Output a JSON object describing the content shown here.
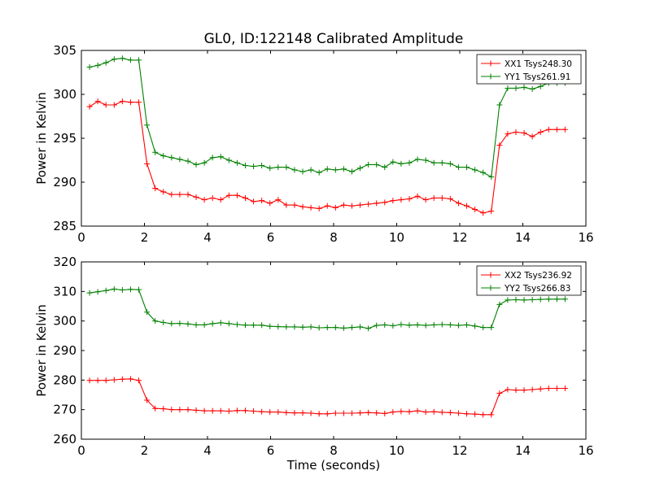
{
  "title": "GL0, ID:122148 Calibrated Amplitude",
  "chart_data": [
    {
      "type": "line",
      "xlim": [
        0,
        16
      ],
      "ylim": [
        285,
        305
      ],
      "xticks": [
        0,
        2,
        4,
        6,
        8,
        10,
        12,
        14,
        16
      ],
      "yticks": [
        285,
        290,
        295,
        300,
        305
      ],
      "xlabel": "",
      "ylabel": "Power in Kelvin",
      "legend_position": "top-right",
      "x": [
        0.26,
        0.52,
        0.78,
        1.04,
        1.3,
        1.56,
        1.82,
        2.08,
        2.34,
        2.6,
        2.86,
        3.12,
        3.38,
        3.64,
        3.9,
        4.16,
        4.42,
        4.68,
        4.94,
        5.2,
        5.46,
        5.72,
        5.98,
        6.24,
        6.5,
        6.76,
        7.02,
        7.28,
        7.54,
        7.8,
        8.06,
        8.32,
        8.58,
        8.84,
        9.1,
        9.36,
        9.62,
        9.88,
        10.14,
        10.4,
        10.66,
        10.92,
        11.18,
        11.44,
        11.7,
        11.96,
        12.22,
        12.48,
        12.74,
        13.0,
        13.26,
        13.52,
        13.78,
        14.04,
        14.3,
        14.56,
        14.82,
        15.08,
        15.34
      ],
      "series": [
        {
          "name": "XX1 Tsys248.30",
          "color": "#ff0000",
          "values": [
            298.6,
            299.2,
            298.8,
            298.8,
            299.2,
            299.1,
            299.1,
            292.1,
            289.3,
            288.9,
            288.6,
            288.6,
            288.6,
            288.3,
            288.0,
            288.2,
            288.0,
            288.5,
            288.5,
            288.2,
            287.8,
            287.9,
            287.6,
            288.0,
            287.4,
            287.4,
            287.2,
            287.1,
            287.0,
            287.3,
            287.1,
            287.4,
            287.3,
            287.4,
            287.5,
            287.6,
            287.7,
            287.9,
            288.0,
            288.1,
            288.4,
            288.0,
            288.2,
            288.2,
            288.1,
            287.6,
            287.3,
            286.9,
            286.5,
            286.7,
            294.2,
            295.5,
            295.7,
            295.6,
            295.2,
            295.7,
            296.0,
            296.0,
            296.0
          ],
          "x_override": "shared"
        },
        {
          "name": "YY1 Tsys261.91",
          "color": "#008000",
          "values": [
            303.1,
            303.3,
            303.6,
            304.0,
            304.1,
            303.9,
            303.9,
            296.5,
            293.4,
            293.0,
            292.8,
            292.6,
            292.4,
            292.0,
            292.2,
            292.8,
            292.9,
            292.5,
            292.2,
            291.9,
            291.8,
            291.9,
            291.6,
            291.7,
            291.7,
            291.4,
            291.2,
            291.4,
            291.1,
            291.5,
            291.4,
            291.5,
            291.2,
            291.6,
            292.0,
            292.0,
            291.7,
            292.3,
            292.1,
            292.2,
            292.6,
            292.5,
            292.2,
            292.2,
            292.1,
            291.7,
            291.7,
            291.4,
            291.1,
            290.6,
            298.8,
            300.7,
            300.7,
            300.8,
            300.6,
            300.9,
            301.3,
            301.3,
            301.3
          ],
          "x_override": "shared"
        }
      ]
    },
    {
      "type": "line",
      "xlim": [
        0,
        16
      ],
      "ylim": [
        260,
        320
      ],
      "xticks": [
        0,
        2,
        4,
        6,
        8,
        10,
        12,
        14,
        16
      ],
      "yticks": [
        260,
        270,
        280,
        290,
        300,
        310,
        320
      ],
      "xlabel": "Time (seconds)",
      "ylabel": "Power in Kelvin",
      "legend_position": "top-right",
      "x": [
        0.26,
        0.52,
        0.78,
        1.04,
        1.3,
        1.56,
        1.82,
        2.08,
        2.34,
        2.6,
        2.86,
        3.12,
        3.38,
        3.64,
        3.9,
        4.16,
        4.42,
        4.68,
        4.94,
        5.2,
        5.46,
        5.72,
        5.98,
        6.24,
        6.5,
        6.76,
        7.02,
        7.28,
        7.54,
        7.8,
        8.06,
        8.32,
        8.58,
        8.84,
        9.1,
        9.36,
        9.62,
        9.88,
        10.14,
        10.4,
        10.66,
        10.92,
        11.18,
        11.44,
        11.7,
        11.96,
        12.22,
        12.48,
        12.74,
        13.0,
        13.26,
        13.52,
        13.78,
        14.04,
        14.3,
        14.56,
        14.82,
        15.08,
        15.34
      ],
      "series": [
        {
          "name": "XX2 Tsys236.92",
          "color": "#ff0000",
          "values": [
            279.9,
            279.9,
            279.9,
            280.1,
            280.3,
            280.4,
            279.9,
            273.2,
            270.4,
            270.3,
            270.0,
            270.0,
            270.0,
            269.8,
            269.6,
            269.6,
            269.6,
            269.5,
            269.7,
            269.7,
            269.5,
            269.3,
            269.2,
            269.2,
            269.0,
            268.9,
            268.9,
            268.8,
            268.6,
            268.6,
            268.8,
            268.8,
            268.8,
            268.9,
            269.0,
            268.9,
            268.7,
            269.2,
            269.4,
            269.3,
            269.6,
            269.2,
            269.3,
            269.1,
            269.0,
            268.8,
            268.6,
            268.5,
            268.3,
            268.3,
            275.5,
            276.8,
            276.6,
            276.6,
            276.8,
            277.0,
            277.2,
            277.2,
            277.2
          ],
          "x_override": "shared"
        },
        {
          "name": "YY2 Tsys266.83",
          "color": "#008000",
          "values": [
            309.5,
            309.9,
            310.3,
            310.8,
            310.5,
            310.7,
            310.6,
            303.0,
            300.0,
            299.5,
            299.1,
            299.2,
            299.0,
            298.7,
            298.7,
            299.1,
            299.4,
            299.1,
            298.8,
            298.6,
            298.6,
            298.6,
            298.2,
            298.1,
            298.0,
            298.0,
            297.9,
            298.0,
            297.7,
            297.8,
            297.8,
            297.6,
            297.8,
            298.0,
            297.5,
            298.5,
            298.7,
            298.4,
            298.8,
            298.6,
            298.7,
            298.5,
            298.7,
            298.8,
            298.7,
            298.5,
            298.7,
            298.3,
            297.8,
            297.8,
            305.6,
            307.1,
            307.2,
            307.1,
            307.2,
            307.3,
            307.4,
            307.4,
            307.4
          ],
          "x_override": "shared"
        }
      ]
    }
  ]
}
